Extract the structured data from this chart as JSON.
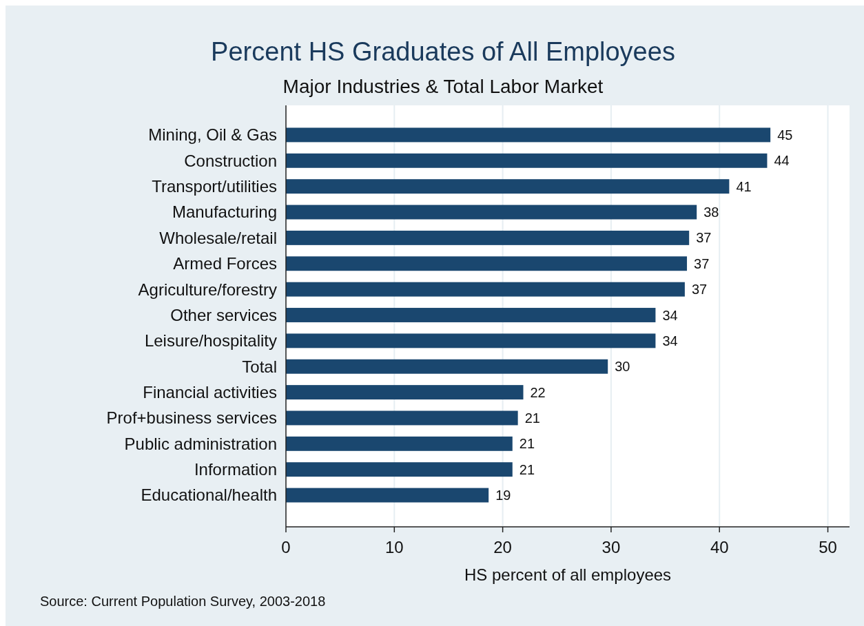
{
  "chart_data": {
    "type": "bar",
    "orientation": "horizontal",
    "title": "Percent HS Graduates of All Employees",
    "subtitle": "Major Industries & Total Labor Market",
    "xlabel": "HS percent of all employees",
    "categories": [
      "Mining, Oil & Gas",
      "Construction",
      "Transport/utilities",
      "Manufacturing",
      "Wholesale/retail",
      "Armed Forces",
      "Agriculture/forestry",
      "Other services",
      "Leisure/hospitality",
      "Total",
      "Financial activities",
      "Prof+business services",
      "Public administration",
      "Information",
      "Educational/health"
    ],
    "values": [
      44.7,
      44.4,
      40.9,
      37.9,
      37.2,
      37.0,
      36.8,
      34.1,
      34.1,
      29.7,
      21.9,
      21.4,
      20.9,
      20.9,
      18.7
    ],
    "value_labels": [
      "45",
      "44",
      "41",
      "38",
      "37",
      "37",
      "37",
      "34",
      "34",
      "30",
      "22",
      "21",
      "21",
      "21",
      "19"
    ],
    "color": "#1a476f",
    "xlim": [
      0,
      52
    ],
    "xticks": [
      0,
      10,
      20,
      30,
      40,
      50
    ],
    "grid": "x",
    "annotations": [
      "Source: Current Population Survey, 2003-2018"
    ]
  }
}
